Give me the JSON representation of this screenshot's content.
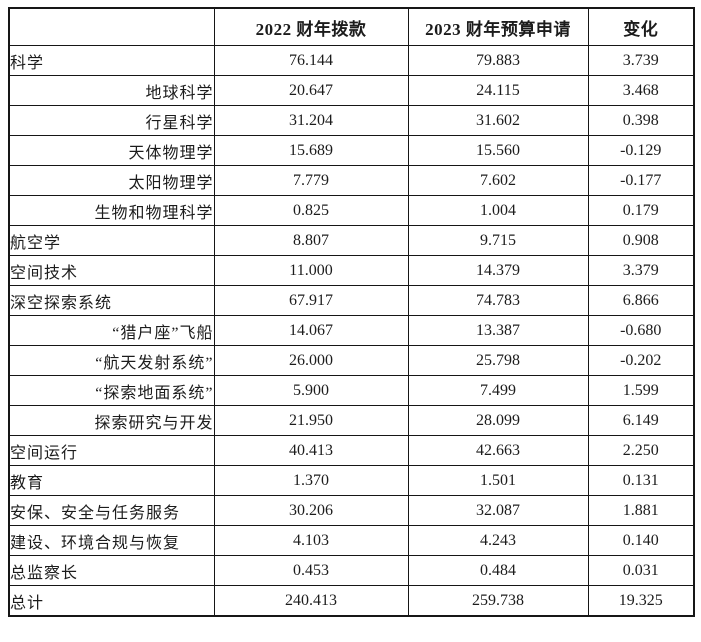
{
  "table": {
    "columns": [
      "",
      "2022 财年拨款",
      "2023 财年预算申请",
      "变化"
    ],
    "rows": [
      {
        "label": "科学",
        "indent": 0,
        "fy2022": "76.144",
        "fy2023": "79.883",
        "change": "3.739"
      },
      {
        "label": "地球科学",
        "indent": 1,
        "fy2022": "20.647",
        "fy2023": "24.115",
        "change": "3.468"
      },
      {
        "label": "行星科学",
        "indent": 1,
        "fy2022": "31.204",
        "fy2023": "31.602",
        "change": "0.398"
      },
      {
        "label": "天体物理学",
        "indent": 1,
        "fy2022": "15.689",
        "fy2023": "15.560",
        "change": "-0.129"
      },
      {
        "label": "太阳物理学",
        "indent": 1,
        "fy2022": "7.779",
        "fy2023": "7.602",
        "change": "-0.177"
      },
      {
        "label": "生物和物理科学",
        "indent": 1,
        "fy2022": "0.825",
        "fy2023": "1.004",
        "change": "0.179"
      },
      {
        "label": "航空学",
        "indent": 0,
        "fy2022": "8.807",
        "fy2023": "9.715",
        "change": "0.908"
      },
      {
        "label": "空间技术",
        "indent": 0,
        "fy2022": "11.000",
        "fy2023": "14.379",
        "change": "3.379"
      },
      {
        "label": "深空探索系统",
        "indent": 0,
        "fy2022": "67.917",
        "fy2023": "74.783",
        "change": "6.866"
      },
      {
        "label": "“猎户座”飞船",
        "indent": 1,
        "fy2022": "14.067",
        "fy2023": "13.387",
        "change": "-0.680"
      },
      {
        "label": "“航天发射系统”",
        "indent": 1,
        "fy2022": "26.000",
        "fy2023": "25.798",
        "change": "-0.202"
      },
      {
        "label": "“探索地面系统”",
        "indent": 1,
        "fy2022": "5.900",
        "fy2023": "7.499",
        "change": "1.599"
      },
      {
        "label": "探索研究与开发",
        "indent": 1,
        "fy2022": "21.950",
        "fy2023": "28.099",
        "change": "6.149"
      },
      {
        "label": "空间运行",
        "indent": 0,
        "fy2022": "40.413",
        "fy2023": "42.663",
        "change": "2.250"
      },
      {
        "label": "教育",
        "indent": 0,
        "fy2022": "1.370",
        "fy2023": "1.501",
        "change": "0.131"
      },
      {
        "label": "安保、安全与任务服务",
        "indent": 0,
        "fy2022": "30.206",
        "fy2023": "32.087",
        "change": "1.881"
      },
      {
        "label": "建设、环境合规与恢复",
        "indent": 0,
        "fy2022": "4.103",
        "fy2023": "4.243",
        "change": "0.140"
      },
      {
        "label": "总监察长",
        "indent": 0,
        "fy2022": "0.453",
        "fy2023": "0.484",
        "change": "0.031"
      },
      {
        "label": "总计",
        "indent": 0,
        "fy2022": "240.413",
        "fy2023": "259.738",
        "change": "19.325"
      }
    ]
  }
}
